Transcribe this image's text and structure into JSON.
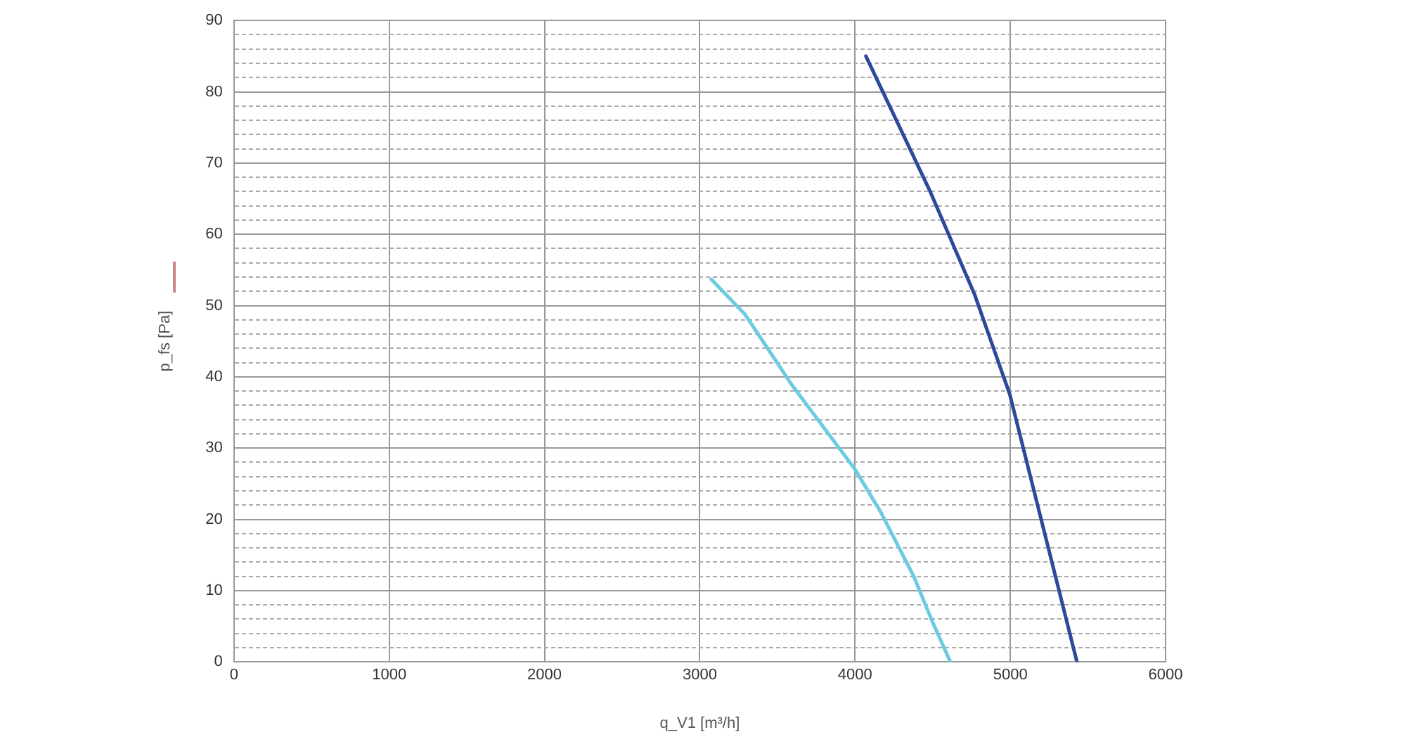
{
  "chart_data": {
    "type": "line",
    "xlabel": "q_V1 [m³/h]",
    "ylabel": "p_fs [Pa]",
    "xlim": [
      0,
      6000
    ],
    "ylim": [
      0,
      90
    ],
    "xticks": [
      0,
      1000,
      2000,
      3000,
      4000,
      5000,
      6000
    ],
    "yticks": [
      0,
      {
        "value": 2,
        "label": null
      },
      {
        "value": 4,
        "label": null
      },
      {
        "value": 6,
        "label": null
      },
      {
        "value": 8,
        "label": null
      },
      10,
      {
        "value": 12,
        "label": null
      },
      {
        "value": 14,
        "label": null
      },
      {
        "value": 16,
        "label": null
      },
      {
        "value": 18,
        "label": null
      },
      20,
      {
        "value": 22,
        "label": null
      },
      {
        "value": 24,
        "label": null
      },
      {
        "value": 26,
        "label": null
      },
      {
        "value": 28,
        "label": null
      },
      30,
      {
        "value": 32,
        "label": null
      },
      {
        "value": 34,
        "label": null
      },
      {
        "value": 36,
        "label": null
      },
      {
        "value": 38,
        "label": null
      },
      40,
      {
        "value": 42,
        "label": null
      },
      {
        "value": 44,
        "label": null
      },
      {
        "value": 46,
        "label": null
      },
      {
        "value": 48,
        "label": null
      },
      50,
      {
        "value": 52,
        "label": null
      },
      {
        "value": 54,
        "label": null
      },
      {
        "value": 56,
        "label": null
      },
      {
        "value": 58,
        "label": null
      },
      60,
      {
        "value": 62,
        "label": null
      },
      {
        "value": 64,
        "label": null
      },
      {
        "value": 66,
        "label": null
      },
      {
        "value": 68,
        "label": null
      },
      70,
      {
        "value": 72,
        "label": null
      },
      {
        "value": 74,
        "label": null
      },
      {
        "value": 76,
        "label": null
      },
      {
        "value": 78,
        "label": null
      },
      80,
      {
        "value": 82,
        "label": null
      },
      {
        "value": 84,
        "label": null
      },
      {
        "value": 86,
        "label": null
      },
      {
        "value": 88,
        "label": null
      },
      90
    ],
    "grid": true,
    "legend": false,
    "marker": "none",
    "line_style": "solid",
    "series": [
      {
        "color": "#2b4a9a",
        "x": [
          4070,
          4484,
          4771,
          4997,
          5164,
          5314,
          5429
        ],
        "values": [
          85,
          66,
          51.5,
          37.5,
          23,
          10,
          0
        ]
      },
      {
        "color": "#6ccbe0",
        "x": [
          3073,
          3290,
          3592,
          4000,
          4166,
          4378,
          4499,
          4614
        ],
        "values": [
          53.7,
          48.8,
          38.9,
          27,
          21,
          12,
          5.6,
          0
        ]
      }
    ]
  }
}
